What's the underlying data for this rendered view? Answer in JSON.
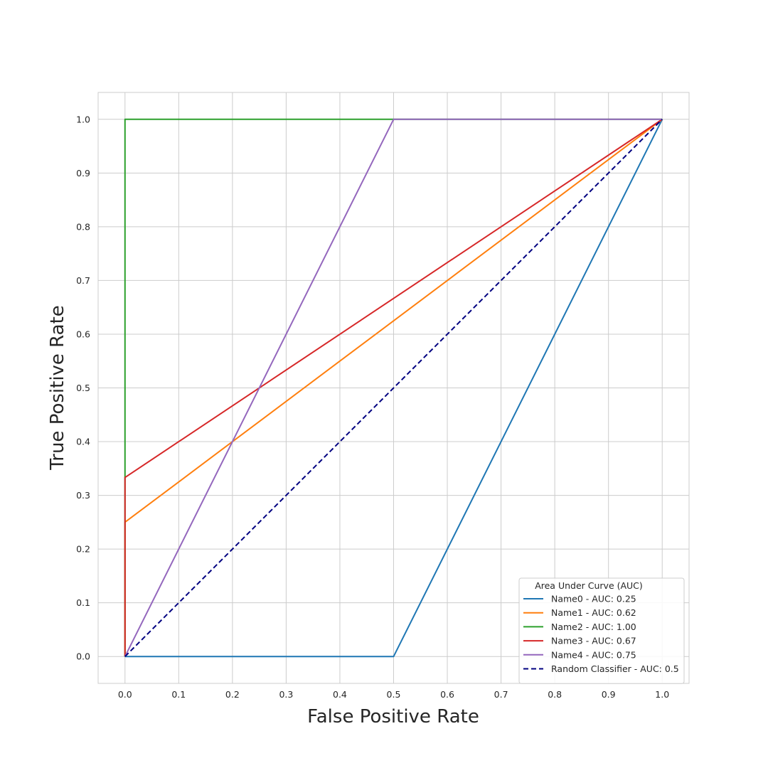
{
  "chart_data": {
    "type": "line",
    "xlabel": "False Positive Rate",
    "ylabel": "True Positive Rate",
    "xlim": [
      -0.05,
      1.05
    ],
    "ylim": [
      -0.05,
      1.05
    ],
    "x_ticks": [
      0.0,
      0.1,
      0.2,
      0.3,
      0.4,
      0.5,
      0.6,
      0.7,
      0.8,
      0.9,
      1.0
    ],
    "y_ticks": [
      0.0,
      0.1,
      0.2,
      0.3,
      0.4,
      0.5,
      0.6,
      0.7,
      0.8,
      0.9,
      1.0
    ],
    "x_tick_labels": [
      "0.0",
      "0.1",
      "0.2",
      "0.3",
      "0.4",
      "0.5",
      "0.6",
      "0.7",
      "0.8",
      "0.9",
      "1.0"
    ],
    "y_tick_labels": [
      "0.0",
      "0.1",
      "0.2",
      "0.3",
      "0.4",
      "0.5",
      "0.6",
      "0.7",
      "0.8",
      "0.9",
      "1.0"
    ],
    "grid": true,
    "legend": {
      "title": "Area Under Curve (AUC)",
      "placement": "lower-right"
    },
    "series": [
      {
        "name": "Name0 - AUC: 0.25",
        "color": "#1f77b4",
        "style": "solid",
        "x": [
          0.0,
          0.5,
          1.0
        ],
        "y": [
          0.0,
          0.0,
          1.0
        ]
      },
      {
        "name": "Name1 - AUC: 0.62",
        "color": "#ff7f0e",
        "style": "solid",
        "x": [
          0.0,
          0.0,
          1.0
        ],
        "y": [
          0.0,
          0.25,
          1.0
        ]
      },
      {
        "name": "Name2 - AUC: 1.00",
        "color": "#2ca02c",
        "style": "solid",
        "x": [
          0.0,
          0.0,
          1.0
        ],
        "y": [
          0.0,
          1.0,
          1.0
        ]
      },
      {
        "name": "Name3 - AUC: 0.67",
        "color": "#d62728",
        "style": "solid",
        "x": [
          0.0,
          0.0,
          1.0
        ],
        "y": [
          0.0,
          0.3333,
          1.0
        ]
      },
      {
        "name": "Name4 - AUC: 0.75",
        "color": "#9467bd",
        "style": "solid",
        "x": [
          0.0,
          0.5,
          1.0
        ],
        "y": [
          0.0,
          1.0,
          1.0
        ]
      },
      {
        "name": "Random Classifier - AUC: 0.5",
        "color": "#000080",
        "style": "dashed",
        "x": [
          0.0,
          1.0
        ],
        "y": [
          0.0,
          1.0
        ]
      }
    ]
  }
}
